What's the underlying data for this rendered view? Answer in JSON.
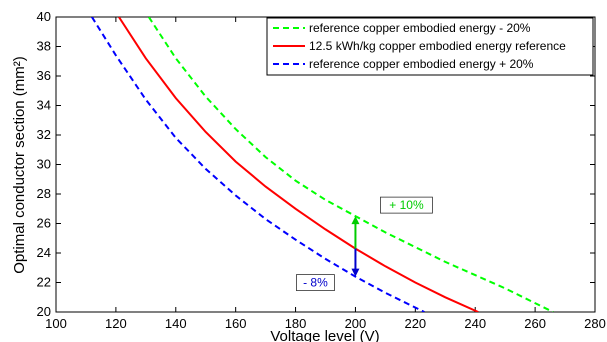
{
  "chart_data": {
    "type": "line",
    "title": "",
    "xlabel": "Voltage level (V)",
    "ylabel": "Optimal conductor section (mm²)",
    "xlim": [
      100,
      280
    ],
    "ylim": [
      20,
      40
    ],
    "x_ticks": [
      100,
      120,
      140,
      160,
      180,
      200,
      220,
      240,
      260,
      280
    ],
    "y_ticks": [
      20,
      22,
      24,
      26,
      28,
      30,
      32,
      34,
      36,
      38,
      40
    ],
    "grid": false,
    "legend_position": "top-right",
    "series": [
      {
        "name": "reference copper embodied energy - 20%",
        "color": "#00ff00",
        "dash": "dashed",
        "x": [
          131,
          140,
          150,
          160,
          170,
          180,
          190,
          200,
          210,
          220,
          230,
          240,
          250,
          266
        ],
        "y": [
          40,
          37.2,
          34.6,
          32.4,
          30.5,
          28.9,
          27.6,
          26.5,
          25.4,
          24.4,
          23.4,
          22.5,
          21.6,
          20
        ]
      },
      {
        "name": "12.5 kWh/kg copper embodied energy reference",
        "color": "#ff0000",
        "dash": "solid",
        "x": [
          121,
          130,
          140,
          150,
          160,
          170,
          180,
          190,
          200,
          210,
          220,
          230,
          241
        ],
        "y": [
          40,
          37.2,
          34.5,
          32.2,
          30.2,
          28.5,
          27,
          25.6,
          24.3,
          23.1,
          22,
          21,
          20
        ]
      },
      {
        "name": "reference copper embodied energy + 20%",
        "color": "#0000ff",
        "dash": "dashed",
        "x": [
          112,
          120,
          130,
          140,
          150,
          160,
          170,
          180,
          190,
          200,
          210,
          223
        ],
        "y": [
          40,
          37.4,
          34.4,
          31.8,
          29.7,
          27.9,
          26.3,
          24.9,
          23.6,
          22.4,
          21.3,
          20
        ]
      }
    ],
    "annotations": [
      {
        "label": "+ 10%",
        "x": 200,
        "y_from": 24.3,
        "y_to": 26.5,
        "color": "#00cc00"
      },
      {
        "label": "- 8%",
        "x": 200,
        "y_from": 24.3,
        "y_to": 22.4,
        "color": "#0000cc"
      }
    ]
  }
}
